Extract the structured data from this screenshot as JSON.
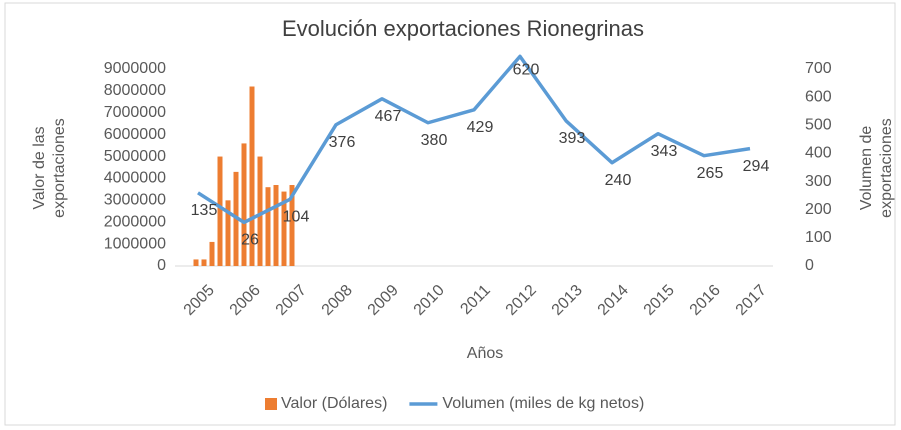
{
  "chart_data": {
    "type": "combo",
    "title": "Evolución exportaciones Rionegrinas",
    "x_label": "Años",
    "y_label": [
      "Valor de las",
      "exportaciones"
    ],
    "y2_label": [
      "Volumen de",
      "exportaciones"
    ],
    "categories": [
      "2005",
      "2006",
      "2007",
      "2008",
      "2009",
      "2010",
      "2011",
      "2012",
      "2013",
      "2014",
      "2015",
      "2016",
      "2017"
    ],
    "ylim": [
      0,
      9000000
    ],
    "yticks": [
      0,
      1000000,
      2000000,
      3000000,
      4000000,
      5000000,
      6000000,
      7000000,
      8000000,
      9000000
    ],
    "y2lim": [
      0,
      700
    ],
    "y2ticks": [
      0,
      100,
      200,
      300,
      400,
      500,
      600,
      700
    ],
    "series": [
      {
        "name": "Valor (Dólares)",
        "type": "bar",
        "color": "#ed7d31",
        "values": [
          300000,
          300000,
          1100000,
          5000000,
          3000000,
          4300000,
          5600000,
          8200000,
          5000000,
          3600000,
          3700000,
          3400000,
          3700000
        ]
      },
      {
        "name": "Volumen (miles de kg netos)",
        "type": "line",
        "axis": "y2",
        "color": "#5b9bd5",
        "values": [
          260,
          155,
          237,
          502,
          594,
          509,
          555,
          745,
          516,
          367,
          470,
          392,
          417
        ]
      }
    ],
    "annotations": [
      "135",
      "26",
      "104",
      "376",
      "467",
      "380",
      "429",
      "620",
      "393",
      "240",
      "343",
      "265",
      "294"
    ]
  }
}
